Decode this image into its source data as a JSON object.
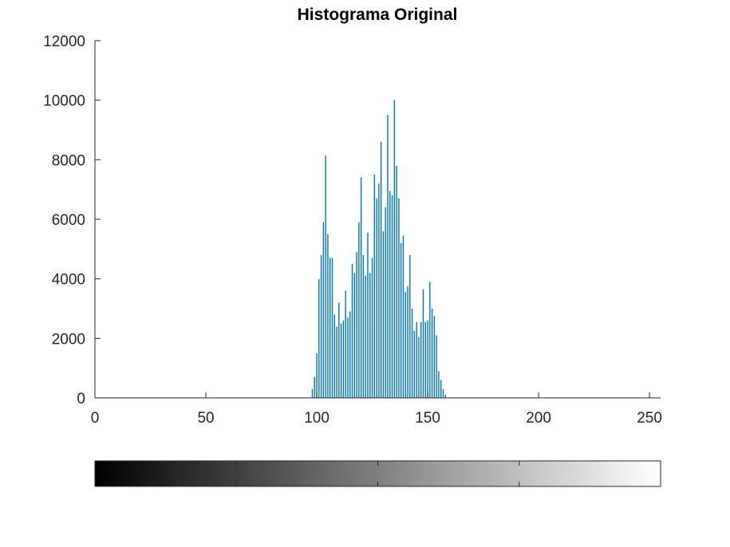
{
  "chart_data": {
    "type": "bar",
    "title": "Histograma Original",
    "xlabel": "",
    "ylabel": "",
    "xlim": [
      0,
      255
    ],
    "ylim": [
      0,
      12000
    ],
    "xticks": [
      0,
      50,
      100,
      150,
      200,
      250
    ],
    "yticks": [
      0,
      2000,
      4000,
      6000,
      8000,
      10000,
      12000
    ],
    "xtick_labels": [
      "0",
      "50",
      "100",
      "150",
      "200",
      "250"
    ],
    "ytick_labels": [
      "0",
      "2000",
      "4000",
      "6000",
      "8000",
      "10000",
      "12000"
    ],
    "grid": false,
    "legend": "none",
    "bar_color": "#0072bd",
    "colorbar": {
      "orientation": "horizontal",
      "colormap": "gray",
      "range": [
        0,
        255
      ]
    },
    "x": [
      98,
      99,
      100,
      101,
      102,
      103,
      104,
      105,
      106,
      107,
      108,
      109,
      110,
      111,
      112,
      113,
      114,
      115,
      116,
      117,
      118,
      119,
      120,
      121,
      122,
      123,
      124,
      125,
      126,
      127,
      128,
      129,
      130,
      131,
      132,
      133,
      134,
      135,
      136,
      137,
      138,
      139,
      140,
      141,
      142,
      143,
      144,
      145,
      146,
      147,
      148,
      149,
      150,
      151,
      152,
      153,
      154,
      155,
      156,
      157,
      158
    ],
    "values": [
      300,
      700,
      1500,
      4000,
      4800,
      5900,
      8150,
      5500,
      4700,
      4700,
      2800,
      2400,
      3200,
      2500,
      2600,
      3600,
      2700,
      2900,
      4500,
      4200,
      4900,
      5900,
      7400,
      4800,
      4100,
      5550,
      4200,
      4700,
      7500,
      6700,
      7200,
      8600,
      5600,
      6400,
      9500,
      6950,
      6800,
      10000,
      7800,
      6700,
      5200,
      5450,
      3550,
      3750,
      4800,
      3000,
      2250,
      2550,
      2050,
      2550,
      3650,
      2550,
      2600,
      3900,
      3000,
      2750,
      2100,
      900,
      600,
      300,
      100
    ]
  }
}
